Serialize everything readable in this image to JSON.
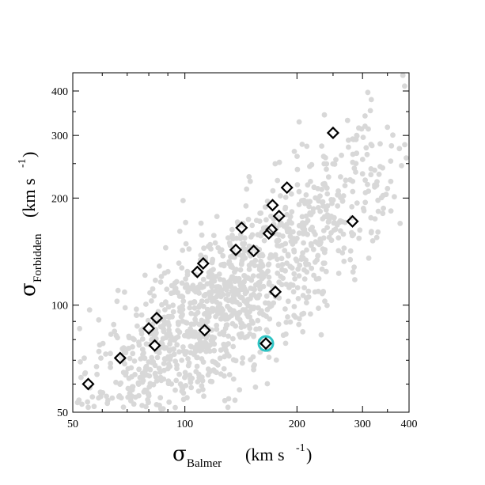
{
  "chart_data": {
    "type": "scatter",
    "x_scale": "log",
    "y_scale": "log",
    "xlim": [
      50,
      400
    ],
    "ylim": [
      50,
      450
    ],
    "x_ticks": [
      "50",
      "100",
      "200",
      "300",
      "400"
    ],
    "y_ticks": [
      "50",
      "100",
      "200",
      "300",
      "400"
    ],
    "x_tick_values": [
      50,
      100,
      200,
      300,
      400
    ],
    "y_tick_values": [
      50,
      100,
      200,
      300,
      400
    ],
    "x_minor_ticks": [
      60,
      70,
      80,
      90,
      250,
      350
    ],
    "y_minor_ticks": [
      60,
      70,
      80,
      90,
      250,
      350
    ],
    "xlabel": {
      "symbol": "σ",
      "subscript": "Balmer",
      "unit": "(km s",
      "superscript": "-1",
      "close": ")"
    },
    "ylabel": {
      "symbol": "σ",
      "subscript": "Forbidden",
      "unit": "(km s",
      "superscript": "-1",
      "close": ")"
    },
    "background_cloud": {
      "color": "#d8d8d8",
      "description_count": 1400,
      "ridge_intercept": 1.6,
      "ridge_slope": 0.85,
      "x_log_mean": 2.1,
      "x_log_sd": 0.24,
      "y_log_scatter": 0.12
    },
    "series": [
      {
        "marker": "open-diamond",
        "color": "#000000",
        "points": [
          {
            "x": 55,
            "y": 60
          },
          {
            "x": 67,
            "y": 71
          },
          {
            "x": 80,
            "y": 86
          },
          {
            "x": 84,
            "y": 92
          },
          {
            "x": 83,
            "y": 77
          },
          {
            "x": 108,
            "y": 124
          },
          {
            "x": 112,
            "y": 131
          },
          {
            "x": 113,
            "y": 85
          },
          {
            "x": 137,
            "y": 143
          },
          {
            "x": 142,
            "y": 165
          },
          {
            "x": 153,
            "y": 142
          },
          {
            "x": 165,
            "y": 78
          },
          {
            "x": 168,
            "y": 159
          },
          {
            "x": 171,
            "y": 163
          },
          {
            "x": 172,
            "y": 191
          },
          {
            "x": 175,
            "y": 109
          },
          {
            "x": 179,
            "y": 178
          },
          {
            "x": 188,
            "y": 214
          },
          {
            "x": 250,
            "y": 305
          },
          {
            "x": 282,
            "y": 172
          }
        ]
      }
    ],
    "highlight": {
      "marker": "circle",
      "color": "#2ec4c4",
      "x": 165,
      "y": 78
    }
  }
}
